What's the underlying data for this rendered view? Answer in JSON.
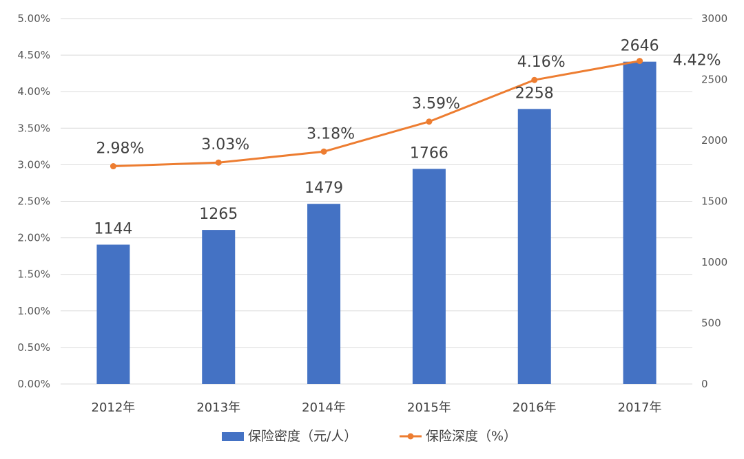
{
  "chart_data": {
    "type": "bar",
    "categories": [
      "2012年",
      "2013年",
      "2014年",
      "2015年",
      "2016年",
      "2017年"
    ],
    "series": [
      {
        "name": "保险密度（元/人）",
        "type": "bar",
        "axis": "right",
        "values": [
          1144,
          1265,
          1479,
          1766,
          2258,
          2646
        ],
        "labels": [
          "1144",
          "1265",
          "1479",
          "1766",
          "2258",
          "2646"
        ],
        "color": "#4472C4"
      },
      {
        "name": "保险深度（%）",
        "type": "line",
        "axis": "left",
        "values": [
          2.98,
          3.03,
          3.18,
          3.59,
          4.16,
          4.42
        ],
        "labels": [
          "2.98%",
          "3.03%",
          "3.18%",
          "3.59%",
          "4.16%",
          "4.42%"
        ],
        "color": "#ED7D31"
      }
    ],
    "y_left": {
      "ylim": [
        0,
        5
      ],
      "ticks": [
        "0.00%",
        "0.50%",
        "1.00%",
        "1.50%",
        "2.00%",
        "2.50%",
        "3.00%",
        "3.50%",
        "4.00%",
        "4.50%",
        "5.00%"
      ]
    },
    "y_right": {
      "ylim": [
        0,
        3000
      ],
      "ticks": [
        "0",
        "500",
        "1000",
        "1500",
        "2000",
        "2500",
        "3000"
      ]
    },
    "grid": true,
    "legend": "bottom"
  }
}
